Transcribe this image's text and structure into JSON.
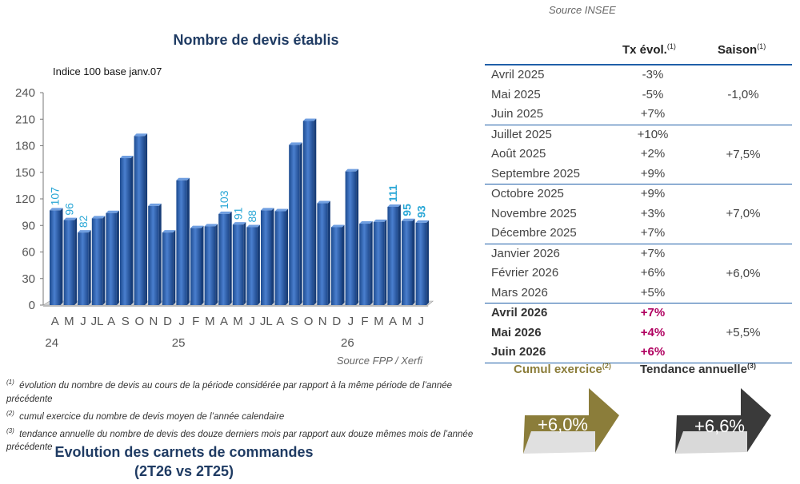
{
  "chart_data": {
    "type": "bar",
    "title": "Nombre de devis établis",
    "subtitle": "Indice 100 base janv.07",
    "source": "Source FPP / Xerfi",
    "ylim": [
      0,
      240
    ],
    "yticks": [
      "0",
      "30",
      "60",
      "90",
      "120",
      "150",
      "180",
      "210",
      "240"
    ],
    "x_labels": [
      "A",
      "M",
      "J",
      "JL",
      "A",
      "S",
      "O",
      "N",
      "D",
      "J",
      "F",
      "M",
      "A",
      "M",
      "J",
      "JL",
      "A",
      "S",
      "O",
      "N",
      "D",
      "J",
      "F",
      "M",
      "A",
      "M",
      "J"
    ],
    "year_labels": [
      "24",
      "25",
      "26"
    ],
    "values": [
      107,
      96,
      82,
      98,
      104,
      166,
      191,
      112,
      82,
      141,
      87,
      89,
      103,
      91,
      88,
      107,
      106,
      181,
      208,
      115,
      88,
      151,
      92,
      94,
      111,
      95,
      93
    ],
    "data_labels": [
      "107",
      "96",
      "82",
      "",
      "",
      "",
      "",
      "",
      "",
      "",
      "",
      "",
      "103",
      "91",
      "88",
      "",
      "",
      "",
      "",
      "",
      "",
      "",
      "",
      "",
      "111",
      "95",
      "93"
    ],
    "bar_color": "#2e5fa6",
    "label_color": "#2aa7d6"
  },
  "table": {
    "source": "Source INSEE",
    "col_tx": "Tx évol.",
    "col_tx_note": "(1)",
    "col_saison": "Saison",
    "col_saison_note": "(1)",
    "groups": [
      {
        "rows": [
          {
            "month": "Avril 2025",
            "tx": "-3%"
          },
          {
            "month": "Mai 2025",
            "tx": "-5%"
          },
          {
            "month": "Juin 2025",
            "tx": "+7%"
          }
        ],
        "saison": "-1,0%"
      },
      {
        "rows": [
          {
            "month": "Juillet 2025",
            "tx": "+10%"
          },
          {
            "month": "Août 2025",
            "tx": "+2%"
          },
          {
            "month": "Septembre 2025",
            "tx": "+9%"
          }
        ],
        "saison": "+7,5%"
      },
      {
        "rows": [
          {
            "month": "Octobre 2025",
            "tx": "+9%"
          },
          {
            "month": "Novembre 2025",
            "tx": "+3%"
          },
          {
            "month": "Décembre 2025",
            "tx": "+7%"
          }
        ],
        "saison": "+7,0%"
      },
      {
        "rows": [
          {
            "month": "Janvier 2026",
            "tx": "+7%"
          },
          {
            "month": "Février 2026",
            "tx": "+6%"
          },
          {
            "month": "Mars 2026",
            "tx": "+5%"
          }
        ],
        "saison": "+6,0%"
      },
      {
        "rows": [
          {
            "month": "Avril 2026",
            "tx": "+7%"
          },
          {
            "month": "Mai 2026",
            "tx": "+4%"
          },
          {
            "month": "Juin 2026",
            "tx": "+6%"
          }
        ],
        "saison": "+5,5%"
      }
    ]
  },
  "cumul": {
    "label": "Cumul exercice",
    "note": "(2)",
    "value": "+6,0%",
    "color": "#8b7d3a"
  },
  "tendance": {
    "label": "Tendance annuelle",
    "note": "(3)",
    "value": "+6,6%",
    "color": "#3a3a3a"
  },
  "notes": [
    {
      "num": "(1)",
      "text": "évolution du nombre de devis au cours de la période considérée par rapport à la même période de l’année précédente"
    },
    {
      "num": "(2)",
      "text": "cumul exercice du nombre de devis moyen de l’année calendaire"
    },
    {
      "num": "(3)",
      "text": "tendance annuelle du nombre de devis des douze derniers mois par rapport aux douze mêmes mois de l’année précédente"
    }
  ],
  "bottom_title_line1": "Evolution des carnets de commandes",
  "bottom_title_line2": "(2T26 vs 2T25)"
}
